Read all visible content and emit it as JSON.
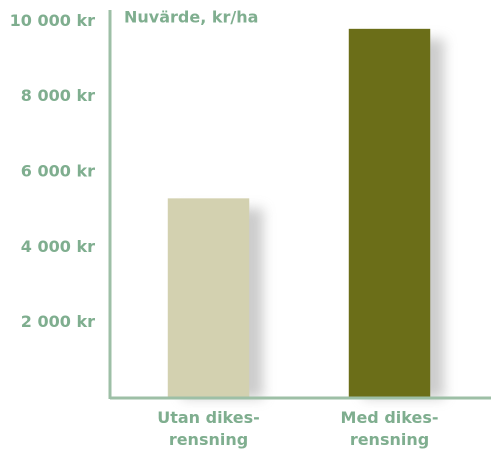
{
  "chart_data": {
    "type": "bar",
    "y_label": "Nuvärde, kr/ha",
    "categories": [
      "Utan dikes-\nrensning",
      "Med dikes-\nrensning"
    ],
    "values": [
      5300,
      9800
    ],
    "colors": [
      "#d3d1b0",
      "#6b6e18"
    ],
    "ylim": [
      0,
      10300
    ],
    "yticks": [
      {
        "value": 2000,
        "label": "2 000 kr"
      },
      {
        "value": 4000,
        "label": "4 000 kr"
      },
      {
        "value": 6000,
        "label": "6 000 kr"
      },
      {
        "value": 8000,
        "label": "8 000 kr"
      },
      {
        "value": 10000,
        "label": "10 000 kr"
      }
    ],
    "grid": false
  }
}
